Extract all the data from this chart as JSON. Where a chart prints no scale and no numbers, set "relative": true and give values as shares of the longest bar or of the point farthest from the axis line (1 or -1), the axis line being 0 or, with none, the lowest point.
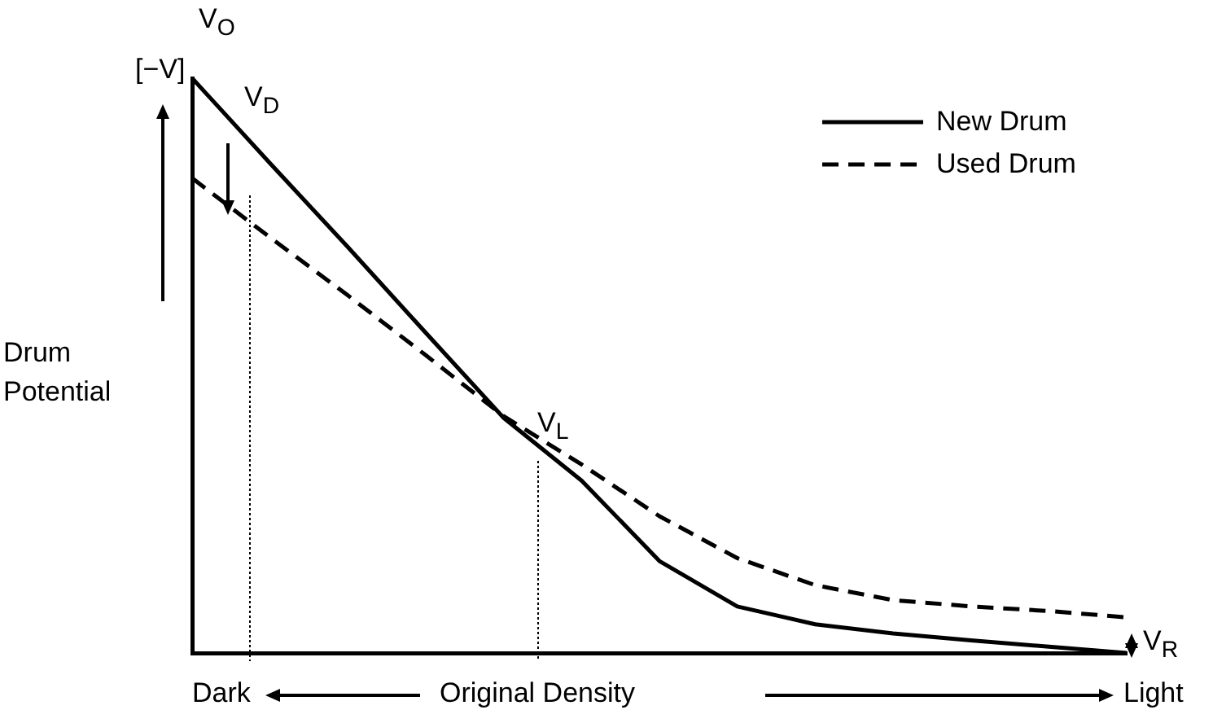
{
  "chart_data": {
    "type": "line",
    "relative": true,
    "xlabel": "Original Density",
    "ylabel": "Drum Potential",
    "legend": "top right",
    "marker": "none",
    "categories": [
      null,
      null,
      null,
      null,
      null,
      null,
      null,
      null,
      null,
      null,
      null,
      null,
      null
    ],
    "series": [
      {
        "name": "New Drum",
        "color": "#000000",
        "line_style": "solid",
        "values": [
          1,
          0.852,
          0.706,
          0.557,
          0.409,
          0.3,
          0.16,
          0.081,
          0.05,
          0.034,
          0.022,
          0.011,
          0
        ]
      },
      {
        "name": "Used Drum",
        "color": "#000000",
        "line_style": "dashed",
        "values": [
          0.826,
          0.723,
          0.622,
          0.518,
          0.412,
          0.328,
          0.238,
          0.165,
          0.118,
          0.092,
          0.081,
          0.073,
          0.062
        ]
      }
    ],
    "annotations": [
      "[−V]",
      "V$_{O}$",
      "V$_{D}$",
      "V$_{L}$",
      "V$_{R}$",
      "Dark",
      "Light"
    ]
  }
}
